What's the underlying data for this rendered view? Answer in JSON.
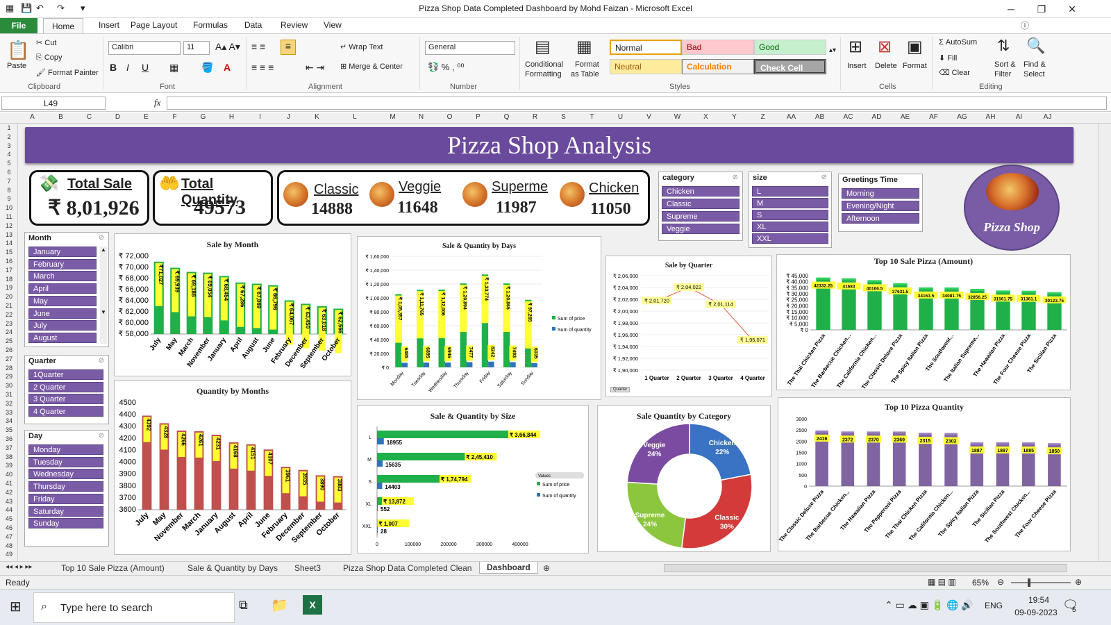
{
  "window": {
    "title": "Pizza Shop Data Completed Dashboard by Mohd Faizan  -  Microsoft Excel"
  },
  "ribbon_tabs": [
    "File",
    "Home",
    "Insert",
    "Page Layout",
    "Formulas",
    "Data",
    "Review",
    "View"
  ],
  "ribbon": {
    "paste": "Paste",
    "cut": "Cut",
    "copy": "Copy",
    "format_painter": "Format Painter",
    "clipboard": "Clipboard",
    "font_name": "Calibri",
    "font_size": "11",
    "font": "Font",
    "wrap_text": "Wrap Text",
    "merge_center": "Merge & Center",
    "alignment": "Alignment",
    "number_format": "General",
    "number": "Number",
    "conditional": "Conditional",
    "formatting": "Formatting",
    "format_as": "Format",
    "as_table": "as Table",
    "styles": [
      "Normal",
      "Bad",
      "Good",
      "Neutral",
      "Calculation",
      "Check Cell"
    ],
    "styles_label": "Styles",
    "insert": "Insert",
    "delete": "Delete",
    "format": "Format",
    "cells": "Cells",
    "autosum": "AutoSum",
    "fill": "Fill",
    "clear": "Clear",
    "sort_filter": "Sort &",
    "filter": "Filter",
    "find_select": "Find &",
    "select": "Select",
    "editing": "Editing"
  },
  "formula_bar": {
    "name_box": "L49",
    "fx": "fx",
    "value": ""
  },
  "columns": [
    "A",
    "B",
    "C",
    "D",
    "E",
    "F",
    "G",
    "H",
    "I",
    "J",
    "K",
    "L",
    "M",
    "N",
    "O",
    "P",
    "Q",
    "R",
    "S",
    "T",
    "U",
    "V",
    "W",
    "X",
    "Y",
    "Z",
    "AA",
    "AB",
    "AC",
    "AD",
    "AE",
    "AF",
    "AG",
    "AH",
    "AI",
    "AJ"
  ],
  "rows": [
    "1",
    "2",
    "3",
    "4",
    "5",
    "6",
    "7",
    "8",
    "9",
    "10",
    "11",
    "12",
    "13",
    "14",
    "15",
    "16",
    "17",
    "18",
    "19",
    "20",
    "21",
    "22",
    "23",
    "24",
    "25",
    "26",
    "27",
    "28",
    "29",
    "30",
    "31",
    "32",
    "33",
    "34",
    "35",
    "36",
    "37",
    "38",
    "39",
    "40",
    "41",
    "42",
    "43",
    "44",
    "45",
    "46",
    "47",
    "48",
    "49"
  ],
  "dashboard": {
    "banner": "Pizza Shop Analysis",
    "total_sale_label": "Total Sale",
    "total_sale_value": "₹ 8,01,926",
    "total_qty_label": "Total Quantity",
    "total_qty_value": "49573",
    "categories": [
      {
        "name": "Classic",
        "value": "14888"
      },
      {
        "name": "Veggie",
        "value": "11648"
      },
      {
        "name": "Superme",
        "value": "11987"
      },
      {
        "name": "Chicken",
        "value": "11050"
      }
    ],
    "logo_text": "Pizza Shop"
  },
  "slicers": {
    "category": {
      "title": "category",
      "items": [
        "Chicken",
        "Classic",
        "Supreme",
        "Veggie"
      ]
    },
    "size": {
      "title": "size",
      "items": [
        "L",
        "M",
        "S",
        "XL",
        "XXL"
      ]
    },
    "greetings": {
      "title": "Greetings Time",
      "items": [
        "Morning",
        "Evening/Night",
        "Afternoon"
      ]
    },
    "month": {
      "title": "Month",
      "items": [
        "January",
        "February",
        "March",
        "April",
        "May",
        "June",
        "July",
        "August"
      ]
    },
    "quarter": {
      "title": "Quarter",
      "items": [
        "1Quarter",
        "2 Quarter",
        "3 Quarter",
        "4 Quarter"
      ]
    },
    "day": {
      "title": "Day",
      "items": [
        "Monday",
        "Tuesday",
        "Wednesday",
        "Thursday",
        "Friday",
        "Saturday",
        "Sunday"
      ]
    }
  },
  "chart_data": [
    {
      "id": "sale_month",
      "type": "bar",
      "title": "Sale by Month",
      "categories": [
        "July",
        "May",
        "March",
        "November",
        "January",
        "April",
        "August",
        "June",
        "February",
        "December",
        "September",
        "October"
      ],
      "values": [
        71027,
        69939,
        69188,
        69054,
        68454,
        67286,
        67069,
        66796,
        64067,
        63450,
        63018,
        62566
      ],
      "labels": [
        "₹71,027",
        "₹ 69,939",
        "₹ 69,188",
        "₹ 69,054",
        "₹ 68,454",
        "₹ 67,286",
        "₹ 67,069",
        "₹ 66,796",
        "₹ 64,067",
        "₹ 63,450",
        "₹ 63,018",
        "₹ 62,566"
      ],
      "yticks": [
        "₹ 72,000",
        "₹ 70,000",
        "₹ 68,000",
        "₹ 66,000",
        "₹ 64,000",
        "₹ 62,000",
        "₹ 60,000",
        "₹ 58,000"
      ],
      "ylim": [
        58000,
        72000
      ]
    },
    {
      "id": "qty_month",
      "type": "bar",
      "title": "Quantity  by Months",
      "categories": [
        "July",
        "May",
        "November",
        "March",
        "January",
        "August",
        "April",
        "June",
        "February",
        "December",
        "September",
        "October"
      ],
      "values": [
        4392,
        4328,
        4266,
        4261,
        4231,
        4168,
        4151,
        4107,
        3961,
        3935,
        3890,
        3883
      ],
      "labels": [
        "4392",
        "4328",
        "4266",
        "4261",
        "4231",
        "4168",
        "4151",
        "4107",
        "3961",
        "3935",
        "3890",
        "3883"
      ],
      "yticks": [
        "4500",
        "4400",
        "4300",
        "4200",
        "4100",
        "4000",
        "3900",
        "3800",
        "3700",
        "3600"
      ],
      "ylim": [
        3600,
        4500
      ]
    },
    {
      "id": "sale_days",
      "type": "bar",
      "title": "Sale & Quantity by Days",
      "categories": [
        "Monday",
        "Tuesday",
        "Wednesday",
        "Thursday",
        "Friday",
        "Saturday",
        "Sunday"
      ],
      "series": [
        {
          "name": "Sum of price",
          "values": [
            105357,
            111765,
            112006,
            120894,
            133774,
            120865,
            97265
          ],
          "labels": [
            "₹ 1,05,357",
            "₹ 1,11,765",
            "₹ 1,12,006",
            "₹ 1,20,894",
            "₹ 1,33,774",
            "₹ 1,20,865",
            "₹ 97,265"
          ]
        },
        {
          "name": "Sum of quantity",
          "values": [
            6485,
            6895,
            6946,
            7477,
            8242,
            7493,
            6035
          ],
          "labels": [
            "6485",
            "6895",
            "6946",
            "7477",
            "8242",
            "7493",
            "6035"
          ]
        }
      ],
      "yticks": [
        "₹ 1,60,000",
        "₹ 1,40,000",
        "₹ 1,20,000",
        "₹ 1,00,000",
        "₹ 80,000",
        "₹ 60,000",
        "₹ 40,000",
        "₹ 20,000",
        "₹ 0"
      ],
      "ylim": [
        0,
        160000
      ]
    },
    {
      "id": "sale_quarter",
      "type": "line",
      "title": "Sale by Quarter",
      "categories": [
        "1 Quarter",
        "2 Quarter",
        "3 Quarter",
        "4 Quarter"
      ],
      "values": [
        201720,
        204022,
        201114,
        195071
      ],
      "labels": [
        "₹ 2,01,720",
        "₹ 2,04,022",
        "₹ 2,01,114",
        "₹ 1,95,071"
      ],
      "yticks": [
        "₹ 2,06,000",
        "₹ 2,04,000",
        "₹ 2,02,000",
        "₹ 2,00,000",
        "₹ 1,98,000",
        "₹ 1,96,000",
        "₹ 1,94,000",
        "₹ 1,92,000",
        "₹ 1,90,000"
      ],
      "ylim": [
        190000,
        206000
      ],
      "filter": "Quarter"
    },
    {
      "id": "top10_amount",
      "type": "bar",
      "title": "Top 10 Sale Pizza (Amount)",
      "categories": [
        "The Thai Chicken Pizza",
        "The Barbecue Chicken...",
        "The California Chicken...",
        "The Classic Deluxe Pizza",
        "The Spicy Italian Pizza",
        "The Southwest...",
        "The Italian Supreme...",
        "The Hawaiian Pizza",
        "The Four Cheese Pizza",
        "The Sicilian Pizza"
      ],
      "values": [
        42332.25,
        41683,
        40166.5,
        37631.5,
        34163.5,
        34081.75,
        32856.25,
        31561.75,
        31361.1,
        30123.75
      ],
      "labels": [
        "42332.25",
        "41683",
        "40166.5",
        "37631.5",
        "34163.5",
        "34081.75",
        "32856.25",
        "31561.75",
        "31361.1",
        "30123.75"
      ],
      "yticks": [
        "₹ 45,000",
        "₹ 40,000",
        "₹ 35,000",
        "₹ 30,000",
        "₹ 25,000",
        "₹ 20,000",
        "₹ 15,000",
        "₹ 10,000",
        "₹ 5,000",
        "₹ 0"
      ],
      "ylim": [
        0,
        45000
      ]
    },
    {
      "id": "size_chart",
      "type": "bar",
      "title": "Sale & Quantity  by Size",
      "categories": [
        "L",
        "M",
        "S",
        "XL",
        "XXL"
      ],
      "series": [
        {
          "name": "Sum of price",
          "values": [
            366844,
            245410,
            174794,
            13872,
            1007
          ],
          "labels": [
            "₹ 3,66,844",
            "₹ 2,45,410",
            "₹ 1,74,794",
            "₹ 13,872",
            "₹ 1,007"
          ]
        },
        {
          "name": "Sum of quantity",
          "values": [
            18955,
            15635,
            14403,
            552,
            28
          ],
          "labels": [
            "18955",
            "15635",
            "14403",
            "552",
            "28"
          ]
        }
      ],
      "xticks": [
        "0",
        "100000",
        "200000",
        "300000",
        "400000"
      ],
      "xlim": [
        0,
        400000
      ],
      "legend_title": "Values"
    },
    {
      "id": "category_pie",
      "type": "pie",
      "title": "Sale Quantity by Category",
      "labels": [
        "Chicken",
        "Classic",
        "Supreme",
        "Veggie"
      ],
      "values": [
        22,
        30,
        24,
        24
      ],
      "pct": [
        "22%",
        "30%",
        "24%",
        "24%"
      ],
      "colors": [
        "#3a72c4",
        "#d33a3a",
        "#8cc63f",
        "#7a4ba0"
      ]
    },
    {
      "id": "top10_qty",
      "type": "bar",
      "title": "Top 10 Pizza Quantity",
      "categories": [
        "The Classic Deluxe Pizza",
        "The Barbecue Chicken...",
        "The Hawaiian Pizza",
        "The Pepperoni Pizza",
        "The Thai Chicken Pizza",
        "The California Chicken...",
        "The Spicy Italian Pizza",
        "The Sicilian Pizza",
        "The Southwest Chicken...",
        "The Four Cheese Pizza"
      ],
      "values": [
        2416,
        2372,
        2370,
        2369,
        2315,
        2302,
        1887,
        1887,
        1885,
        1850
      ],
      "labels": [
        "2416",
        "2372",
        "2370",
        "2369",
        "2315",
        "2302",
        "1887",
        "1887",
        "1885",
        "1850"
      ],
      "yticks": [
        "3000",
        "2500",
        "2000",
        "1500",
        "1000",
        "500",
        "0"
      ],
      "ylim": [
        0,
        3000
      ]
    }
  ],
  "colors": {
    "purple": "#6a4a9c",
    "green": "#1fb04a",
    "red": "#c0504d",
    "blue": "#2e75b6",
    "label_bg": "#ffff33",
    "qty_bar": "#8064a2"
  },
  "sheet_tabs": [
    "Top 10 Sale Pizza (Amount)",
    "Sale & Quantity by Days",
    "Sheet3",
    "Pizza Shop Data Completed Clean",
    "Dashboard"
  ],
  "status": {
    "ready": "Ready",
    "zoom": "65%"
  },
  "taskbar": {
    "search": "Type here to search",
    "lang": "ENG",
    "time": "19:54",
    "date": "09-09-2023",
    "notif": "5"
  }
}
